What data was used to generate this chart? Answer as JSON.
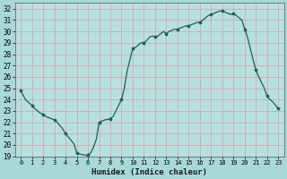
{
  "title": "",
  "xlabel": "Humidex (Indice chaleur)",
  "bg_color": "#a8d8d8",
  "plot_bg_color": "#b8e0e0",
  "grid_color": "#d4a0a0",
  "line_color": "#1a5f5a",
  "marker_color": "#1a5f5a",
  "xlim": [
    -0.5,
    23.5
  ],
  "ylim": [
    19,
    32.5
  ],
  "yticks": [
    19,
    20,
    21,
    22,
    23,
    24,
    25,
    26,
    27,
    28,
    29,
    30,
    31,
    32
  ],
  "xticks": [
    0,
    1,
    2,
    3,
    4,
    5,
    6,
    7,
    8,
    9,
    10,
    11,
    12,
    13,
    14,
    15,
    16,
    17,
    18,
    19,
    20,
    21,
    22,
    23
  ],
  "x": [
    0,
    0.25,
    0.5,
    0.75,
    1,
    1.25,
    1.5,
    1.75,
    2,
    2.25,
    2.5,
    2.75,
    3,
    3.25,
    3.5,
    3.75,
    4,
    4.25,
    4.5,
    4.75,
    5,
    5.25,
    5.5,
    5.75,
    6,
    6.25,
    6.5,
    6.75,
    7,
    7.25,
    7.5,
    7.75,
    8,
    8.25,
    8.5,
    8.75,
    9,
    9.25,
    9.5,
    9.75,
    10,
    10.25,
    10.5,
    10.75,
    11,
    11.25,
    11.5,
    11.75,
    12,
    12.25,
    12.5,
    12.75,
    13,
    13.25,
    13.5,
    13.75,
    14,
    14.25,
    14.5,
    14.75,
    15,
    15.25,
    15.5,
    15.75,
    16,
    16.25,
    16.5,
    16.75,
    17,
    17.25,
    17.5,
    17.75,
    18,
    18.25,
    18.5,
    18.75,
    19,
    19.25,
    19.5,
    19.75,
    20,
    20.25,
    20.5,
    20.75,
    21,
    21.25,
    21.5,
    21.75,
    22,
    22.25,
    22.5,
    22.75,
    23
  ],
  "y": [
    24.8,
    24.3,
    23.9,
    23.7,
    23.5,
    23.2,
    23.0,
    22.8,
    22.7,
    22.5,
    22.4,
    22.3,
    22.2,
    22.0,
    21.7,
    21.4,
    21.0,
    20.7,
    20.4,
    20.1,
    19.3,
    19.2,
    19.15,
    19.1,
    19.1,
    19.3,
    19.8,
    20.5,
    22.0,
    22.1,
    22.2,
    22.25,
    22.3,
    22.5,
    23.0,
    23.5,
    24.0,
    25.0,
    26.5,
    27.5,
    28.5,
    28.6,
    28.8,
    29.0,
    29.0,
    29.2,
    29.5,
    29.6,
    29.5,
    29.6,
    29.8,
    30.0,
    29.8,
    30.0,
    30.1,
    30.2,
    30.2,
    30.3,
    30.4,
    30.5,
    30.5,
    30.6,
    30.7,
    30.8,
    30.8,
    31.0,
    31.2,
    31.4,
    31.5,
    31.6,
    31.7,
    31.8,
    31.8,
    31.7,
    31.6,
    31.5,
    31.6,
    31.4,
    31.2,
    31.0,
    30.2,
    29.5,
    28.5,
    27.5,
    26.6,
    26.0,
    25.5,
    25.0,
    24.3,
    24.0,
    23.8,
    23.5,
    23.2
  ],
  "marker_x": [
    0,
    1,
    2,
    3,
    4,
    5,
    6,
    7,
    8,
    9,
    10,
    11,
    12,
    13,
    14,
    15,
    16,
    17,
    18,
    19,
    20,
    21,
    22,
    23
  ],
  "marker_y": [
    24.8,
    23.5,
    22.7,
    22.2,
    21.0,
    19.3,
    19.1,
    22.0,
    22.3,
    24.0,
    28.5,
    29.0,
    29.5,
    29.8,
    30.2,
    30.5,
    30.8,
    31.5,
    31.8,
    31.6,
    30.2,
    26.6,
    24.3,
    23.2
  ]
}
